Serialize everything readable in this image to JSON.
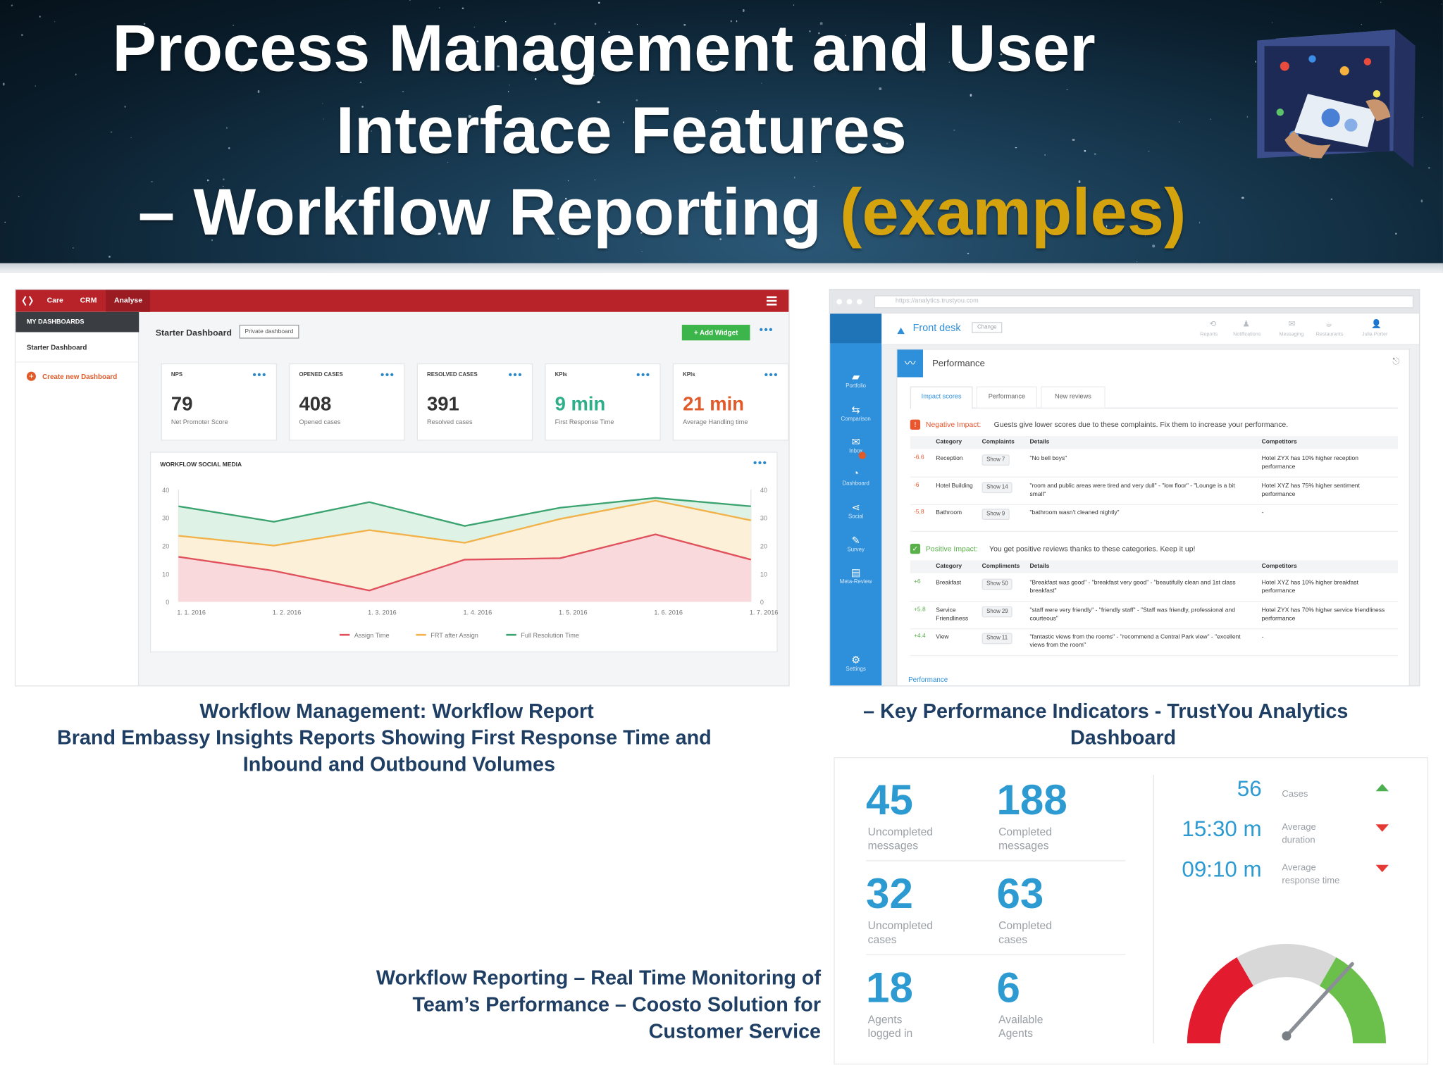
{
  "header": {
    "title_line1": "Process Management and User",
    "title_line2": "Interface Features",
    "title_line3_prefix": "– Workflow Reporting ",
    "title_line3_highlight": "(examples)",
    "highlight_color": "#d4a30e"
  },
  "panel1": {
    "nav": {
      "care": "Care",
      "crm": "CRM",
      "analyse": "Analyse"
    },
    "sidebar": {
      "section": "MY DASHBOARDS",
      "item": "Starter Dashboard",
      "create": "Create new Dashboard"
    },
    "dashboard_title": "Starter Dashboard",
    "private_badge": "Private dashboard",
    "add_widget": "+ Add Widget",
    "cards": [
      {
        "label": "NPS",
        "value": "79",
        "desc": "Net Promoter Score",
        "color": "#333333"
      },
      {
        "label": "OPENED CASES",
        "value": "408",
        "desc": "Opened cases",
        "color": "#333333"
      },
      {
        "label": "RESOLVED CASES",
        "value": "391",
        "desc": "Resolved cases",
        "color": "#333333"
      },
      {
        "label": "KPIs",
        "value": "9 min",
        "desc": "First Response Time",
        "color": "#2fae8a"
      },
      {
        "label": "KPIs",
        "value": "21 min",
        "desc": "Average Handling time",
        "color": "#e05a2a"
      }
    ],
    "accent": "#b8232a"
  },
  "chart_data": {
    "type": "area",
    "title": "WORKFLOW SOCIAL MEDIA",
    "categories": [
      "1. 1. 2016",
      "1. 2. 2016",
      "1. 3. 2016",
      "1. 4. 2016",
      "1. 5. 2016",
      "1. 6. 2016",
      "1. 7. 2016"
    ],
    "ylim": [
      0,
      40
    ],
    "yticks": [
      "0",
      "10",
      "20",
      "30",
      "40"
    ],
    "series": [
      {
        "name": "Full Resolution Time",
        "color": "#3aa36f",
        "fill": "#dff2e6",
        "values": [
          34,
          28.5,
          35.5,
          27,
          33.5,
          37,
          34
        ]
      },
      {
        "name": "FRT after Assign",
        "color": "#f2b24a",
        "fill": "#fdf0d9",
        "values": [
          23.5,
          20,
          25.5,
          21,
          29.5,
          36,
          29
        ]
      },
      {
        "name": "Assign Time",
        "color": "#e0515c",
        "fill": "#f9d9dc",
        "values": [
          16,
          11,
          4,
          15,
          15.5,
          24,
          15
        ]
      }
    ],
    "legend": "bottom"
  },
  "panel2": {
    "url": "https://analytics.trustyou.com",
    "logo": "TY",
    "location": "Front desk",
    "change": "Change",
    "top_nav": [
      "Reports",
      "Notifications",
      "Messaging",
      "Restaurants",
      "Julia Porter"
    ],
    "sidebar": [
      "Portfolio",
      "Comparison",
      "Inbox",
      "Dashboard",
      "Social",
      "Survey",
      "Meta-Review",
      "Settings"
    ],
    "section_title": "Performance",
    "tabs": [
      "Impact scores",
      "Performance",
      "New reviews"
    ],
    "negative": {
      "label": "Negative Impact:",
      "text": "Guests give lower scores due to these complaints. Fix them to increase your performance.",
      "cols": [
        "Category",
        "Complaints",
        "Details",
        "Competitors"
      ],
      "rows": [
        {
          "score": "-6.6",
          "cat": "Reception",
          "btn": "Show 7",
          "detail": "\"No bell boys\"",
          "comp": "Hotel ZYX has 10% higher reception performance"
        },
        {
          "score": "-6",
          "cat": "Hotel Building",
          "btn": "Show 14",
          "detail": "\"room and public areas were tired and very dull\" - \"low floor\" - \"Lounge is a bit small\"",
          "comp": "Hotel XYZ has 75% higher sentiment performance"
        },
        {
          "score": "-5.8",
          "cat": "Bathroom",
          "btn": "Show 9",
          "detail": "\"bathroom wasn't cleaned nightly\"",
          "comp": "-"
        }
      ]
    },
    "positive": {
      "label": "Positive Impact:",
      "text": "You get positive reviews thanks to these categories. Keep it up!",
      "cols": [
        "Category",
        "Compliments",
        "Details",
        "Competitors"
      ],
      "rows": [
        {
          "score": "+6",
          "cat": "Breakfast",
          "btn": "Show 50",
          "detail": "\"Breakfast was good\" - \"breakfast very good\" - \"beautifully clean and 1st class breakfast\"",
          "comp": "Hotel XYZ has 10% higher breakfast performance"
        },
        {
          "score": "+5.8",
          "cat": "Service Friendliness",
          "btn": "Show 29",
          "detail": "\"staff were very friendly\" - \"friendly staff\" - \"Staff was friendly, professional and courteous\"",
          "comp": "Hotel ZYX has 70% higher service friendliness performance"
        },
        {
          "score": "+4.4",
          "cat": "View",
          "btn": "Show 11",
          "detail": "\"fantastic views from the rooms\" - \"recommend a Central Park view\" - \"excellent views from the room\"",
          "comp": "-"
        }
      ]
    },
    "footer": "Performance",
    "accent": "#2e8fdb"
  },
  "captions": {
    "left": [
      "Workflow Management: Workflow Report",
      "Brand Embassy Insights Reports Showing First Response Time and",
      "Inbound and Outbound Volumes"
    ],
    "right": [
      "– Key Performance Indicators - TrustYou Analytics",
      "Dashboard"
    ],
    "bottom": [
      "Workflow Reporting – Real Time Monitoring of",
      "Team’s Performance – Coosto Solution for",
      "Customer Service"
    ]
  },
  "panel3": {
    "stats": [
      {
        "value": "45",
        "label": [
          "Uncompleted",
          "messages"
        ]
      },
      {
        "value": "188",
        "label": [
          "Completed",
          "messages"
        ]
      },
      {
        "value": "32",
        "label": [
          "Uncompleted",
          "cases"
        ]
      },
      {
        "value": "63",
        "label": [
          "Completed",
          "cases"
        ]
      },
      {
        "value": "18",
        "label": [
          "Agents",
          "logged in"
        ]
      },
      {
        "value": "6",
        "label": [
          "Available",
          "Agents"
        ]
      }
    ],
    "kpis": [
      {
        "value": "56",
        "label": [
          "Cases"
        ],
        "trend": "up",
        "trend_color": "#4caf50"
      },
      {
        "value": "15:30 m",
        "label": [
          "Average",
          "duration"
        ],
        "trend": "down",
        "trend_color": "#e53935"
      },
      {
        "value": "09:10 m",
        "label": [
          "Average",
          "response time"
        ],
        "trend": "down",
        "trend_color": "#e53935"
      }
    ],
    "gauge_level": 0.72,
    "gauge_colors": [
      "#e31b2f",
      "#d8d8d8",
      "#6ac04a"
    ]
  }
}
